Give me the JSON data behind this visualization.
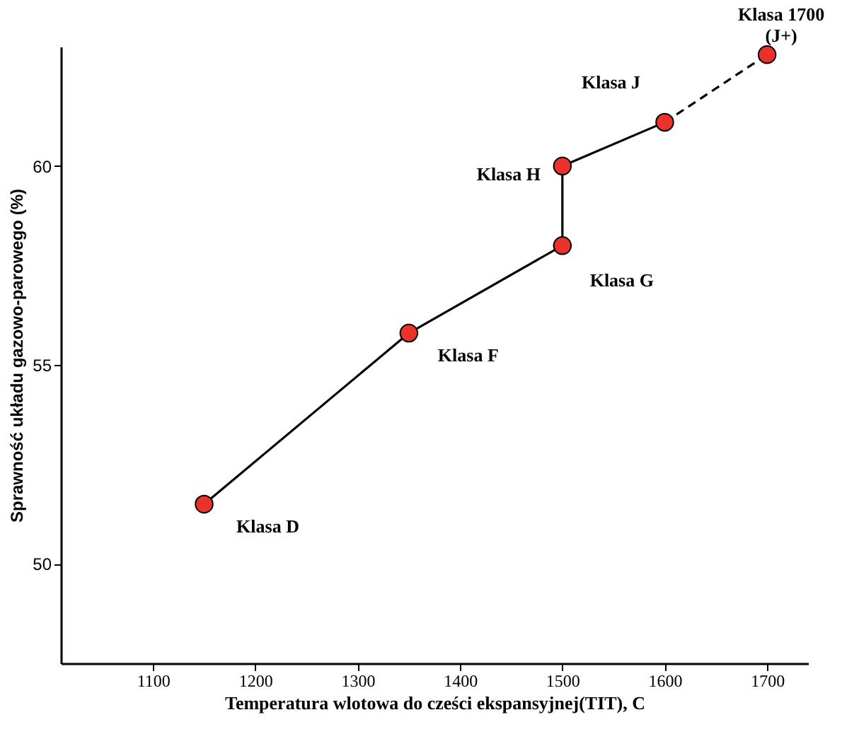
{
  "chart_data": {
    "type": "line",
    "xlabel": "Temperatura wlotowa do cześci ekspansyjnej(TIT), C",
    "ylabel": "Sprawność układu gazowo-parowego (%)",
    "xlim": [
      1010,
      1740
    ],
    "ylim": [
      47.5,
      63
    ],
    "xticks": [
      1100,
      1200,
      1300,
      1400,
      1500,
      1600,
      1700
    ],
    "yticks": [
      50,
      55,
      60
    ],
    "grid": false,
    "series": [
      {
        "line_style": "solid",
        "color": "#000000",
        "x": [
          1150,
          1350,
          1500,
          1500,
          1600
        ],
        "values": [
          51.5,
          55.8,
          58,
          60,
          61.1
        ]
      },
      {
        "line_style": "dashed",
        "color": "#000000",
        "x": [
          1600,
          1700
        ],
        "values": [
          61.1,
          62.8
        ]
      },
      {
        "type": "scatter",
        "marker": "circle",
        "color": "#e8322a",
        "x": [
          1150,
          1350,
          1500,
          1500,
          1600,
          1700
        ],
        "values": [
          51.5,
          55.8,
          58,
          60,
          61.1,
          62.8
        ]
      }
    ],
    "annotations": [
      {
        "text": "Klasa D",
        "x": 1150,
        "y": 51.5
      },
      {
        "text": "Klasa F",
        "x": 1350,
        "y": 55.8
      },
      {
        "text": "Klasa G",
        "x": 1500,
        "y": 58
      },
      {
        "text": "Klasa H",
        "x": 1500,
        "y": 60
      },
      {
        "text": "Klasa J",
        "x": 1600,
        "y": 61.1
      },
      {
        "text": "Klasa 1700\n(J+)",
        "x": 1700,
        "y": 62.8
      }
    ]
  }
}
